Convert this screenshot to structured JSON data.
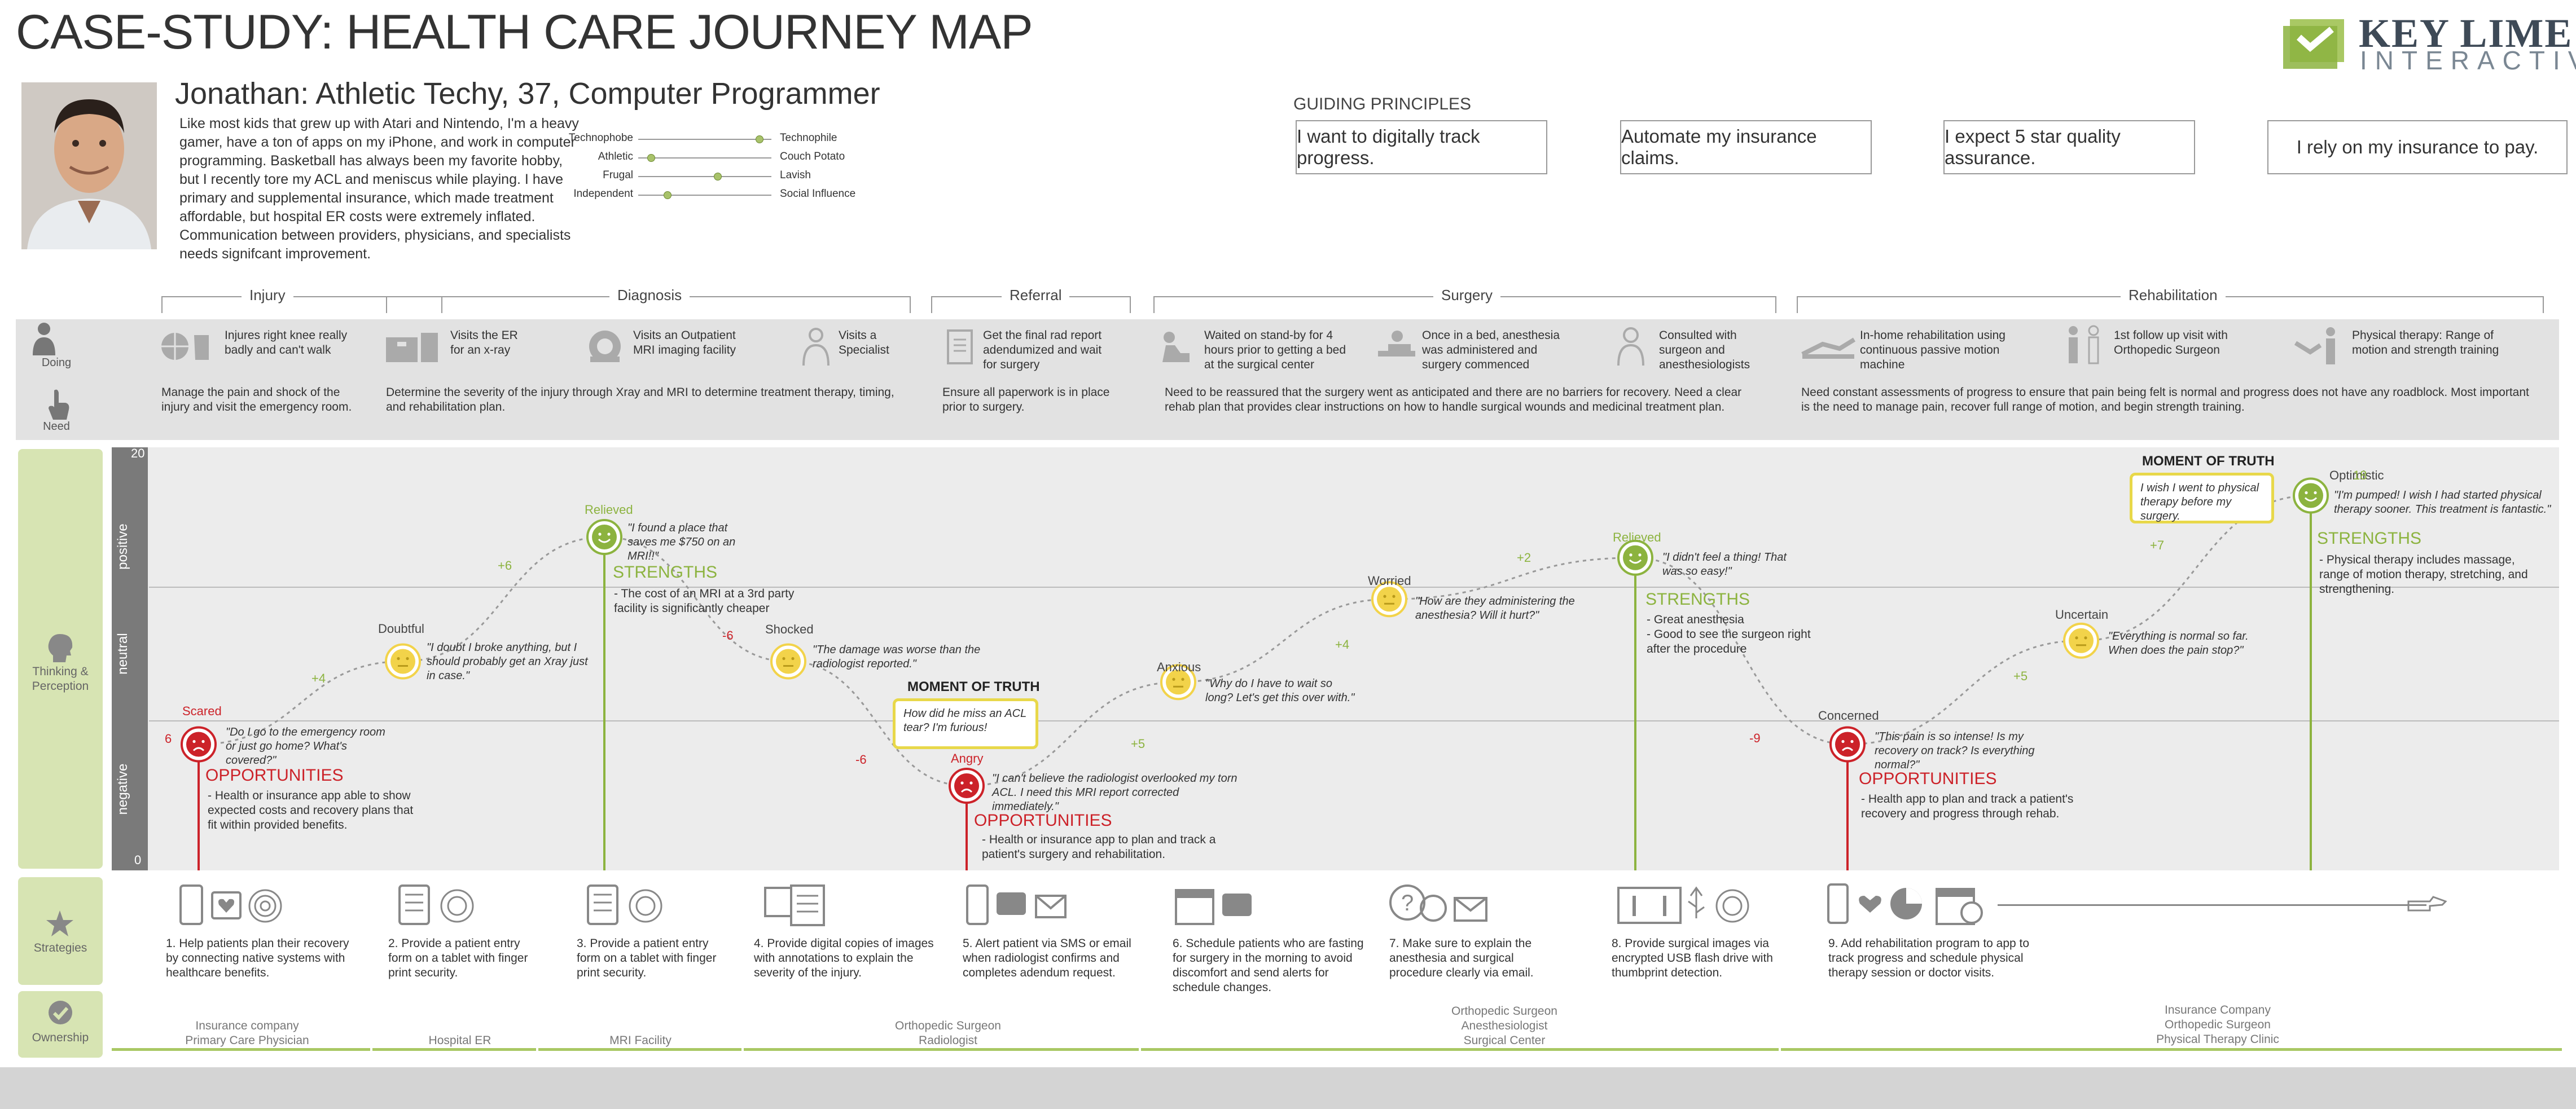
{
  "header": {
    "title": "CASE-STUDY: HEALTH CARE JOURNEY MAP"
  },
  "logo": {
    "word1": "KEY LIME",
    "word2": "INTERACTIVE"
  },
  "persona": {
    "name": "Jonathan:  Athletic Techy, 37, Computer Programmer",
    "bio": "Like most kids that grew up with Atari and Nintendo, I'm a heavy gamer, have a ton of apps on my iPhone, and work in computer programming. Basketball has always been my favorite hobby, but I recently tore my ACL and meniscus while playing. I have primary and supplemental insurance, which made treatment affordable, but hospital ER costs were extremely inflated. Communication between providers, physicians, and specialists needs signifcant improvement.",
    "traits": [
      {
        "left": "Technophobe",
        "right": "Technophile",
        "value": 0.93
      },
      {
        "left": "Athletic",
        "right": "Couch Potato",
        "value": 0.07
      },
      {
        "left": "Frugal",
        "right": "Lavish",
        "value": 0.6
      },
      {
        "left": "Independent",
        "right": "Social Influence",
        "value": 0.2
      }
    ]
  },
  "guiding_principles": {
    "title": "GUIDING PRINCIPLES",
    "items": [
      "I want to digitally track progress.",
      "Automate my insurance claims.",
      "I expect 5 star quality assurance.",
      "I rely on my insurance to pay."
    ]
  },
  "phases": [
    "Injury",
    "Diagnosis",
    "Referral",
    "Surgery",
    "Rehabilitation"
  ],
  "row_labels": {
    "doing": "Doing",
    "need": "Need"
  },
  "doing": [
    {
      "text": "Injures right knee really badly and can't walk",
      "icon": "basketball-injury-icon"
    },
    {
      "text": "Visits the ER for an x-ray",
      "icon": "hospital-icon"
    },
    {
      "text": "Visits an Outpatient MRI imaging facility",
      "icon": "mri-machine-icon"
    },
    {
      "text": "Visits a Specialist",
      "icon": "doctor-icon"
    },
    {
      "text": "Get the final rad report adendumized and wait for surgery",
      "icon": "clipboard-icon"
    },
    {
      "text": "Waited on stand-by for 4 hours prior to getting a bed at the surgical center",
      "icon": "waiting-icon"
    },
    {
      "text": "Once in a bed, anesthesia was administered and surgery commenced",
      "icon": "surgery-bed-icon"
    },
    {
      "text": "Consulted with surgeon and anesthesiologists",
      "icon": "surgeon-icon"
    },
    {
      "text": "In-home rehabilitation using continuous passive motion machine",
      "icon": "rehab-machine-icon"
    },
    {
      "text": "1st follow up visit with Orthopedic Surgeon",
      "icon": "follow-up-icon"
    },
    {
      "text": "Physical therapy: Range of motion and strength training",
      "icon": "physical-therapy-icon"
    }
  ],
  "needs": [
    "Manage the pain and shock of the injury and visit the emergency room.",
    "Determine the severity of the injury through Xray and MRI to determine treatment therapy, timing, and rehabilitation plan.",
    "Ensure all paperwork is in place prior to surgery.",
    "Need to be reassured that the surgery went as anticipated and there are no barriers for recovery. Need a clear rehab plan that provides clear instructions on how to handle surgical wounds and medicinal treatment plan.",
    "Need constant assessments of progress to ensure that pain being felt is normal and progress does not have any roadblock. Most important is the need to manage pain, recover full range of motion, and begin strength training."
  ],
  "perception": {
    "label": "Thinking & Perception",
    "zones": [
      "positive",
      "neutral",
      "negative"
    ],
    "y_top": "20",
    "y_bottom": "0",
    "emotions": [
      {
        "label": "Scared",
        "score": 6,
        "score_label": "6",
        "quote": "\"Do I go to the emergency room or just go home? What's covered?\"",
        "mood": "negative"
      },
      {
        "label": "Doubtful",
        "score": 10,
        "quote": "\"I doubt I broke anything, but I should probably get an Xray just in case.\"",
        "mood": "neutral"
      },
      {
        "label": "Relieved",
        "score": 16,
        "quote": "\"I found a place that saves me $750 on an MRI!!\"",
        "mood": "positive"
      },
      {
        "label": "Shocked",
        "score": 10,
        "quote": "\"The damage was worse than the radiologist reported.\"",
        "mood": "neutral"
      },
      {
        "label": "Angry",
        "score": 4,
        "quote": "\"I can't believe the radiologist overlooked my torn ACL. I need this MRI report corrected immediately.\"",
        "mood": "negative"
      },
      {
        "label": "Anxious",
        "score": 9,
        "quote": "\"Why do I have to wait so long? Let's get this over with.\"",
        "mood": "neutral"
      },
      {
        "label": "Worried",
        "score": 13,
        "quote": "\"How are they administering the anesthesia? Will it hurt?\"",
        "mood": "neutral"
      },
      {
        "label": "Relieved",
        "score": 15,
        "quote": "\"I didn't feel a thing! That was so easy!\"",
        "mood": "positive"
      },
      {
        "label": "Concerned",
        "score": 6,
        "quote": "\"This pain is so intense! Is my recovery on track? Is everything normal?\"",
        "mood": "negative"
      },
      {
        "label": "Uncertain",
        "score": 11,
        "quote": "\"Everything is normal so far. When does the pain stop?\"",
        "mood": "neutral"
      },
      {
        "label": "Optimistic",
        "score": 18,
        "score_label": "18",
        "quote": "\"I'm pumped! I wish I had started physical therapy sooner. This treatment is fantastic.\"",
        "mood": "positive"
      }
    ],
    "deltas": [
      "+4",
      "+6",
      "-6",
      "-6",
      "+5",
      "+4",
      "+2",
      "-9",
      "+5",
      "+7"
    ],
    "strengths_title": "STRENGTHS",
    "opportunities_title": "OPPORTUNITIES",
    "strengths": [
      "- The cost of an MRI at a 3rd party facility is significantly cheaper",
      "- Great anesthesia\n- Good to see the surgeon right after the procedure",
      "- Physical therapy includes massage, range of motion therapy, stretching, and strengthening."
    ],
    "opportunities": [
      "- Health or insurance app able to show expected costs and recovery plans that fit within provided benefits.",
      "- Health or insurance app to plan and track a patient's surgery and rehabilitation.",
      "- Health app to plan and track a patient's recovery and progress through rehab."
    ],
    "moments_of_truth": {
      "title": "MOMENT OF TRUTH",
      "items": [
        "How did he miss an ACL tear? I'm furious!",
        "I wish I went to physical therapy before my surgery."
      ]
    }
  },
  "strategies": {
    "label": "Strategies",
    "items": [
      "1. Help patients plan their recovery by connecting native systems with healthcare benefits.",
      "2. Provide a patient entry form on a tablet with finger print security.",
      "3. Provide a patient entry form on a tablet with finger print security.",
      "4. Provide digital copies of images with annotations to explain the severity of the injury.",
      "5. Alert patient via SMS or email when radiologist confirms and completes adendum request.",
      "6. Schedule patients who are fasting for surgery in the morning to avoid discomfort and send alerts for schedule changes.",
      "7. Make sure to explain the anesthesia and surgical procedure clearly via email.",
      "8. Provide surgical images via encrypted USB flash drive with thumbprint detection.",
      "9. Add rehabilitation program to app to track progress and schedule physical therapy session or doctor visits."
    ]
  },
  "ownership": {
    "label": "Ownership",
    "items": [
      "Insurance company\nPrimary Care Physician",
      "Hospital ER",
      "MRI Facility",
      "Orthopedic Surgeon\nRadiologist",
      "Orthopedic Surgeon\nAnesthesiologist\nSurgical Center",
      "Insurance Company\nOrthopedic Surgeon\nPhysical Therapy Clinic"
    ]
  },
  "colors": {
    "accent_green": "#8cb33f",
    "negative_red": "#cc2229",
    "neutral_yellow": "#f2d34a",
    "tab_green": "#d7e4b3"
  }
}
